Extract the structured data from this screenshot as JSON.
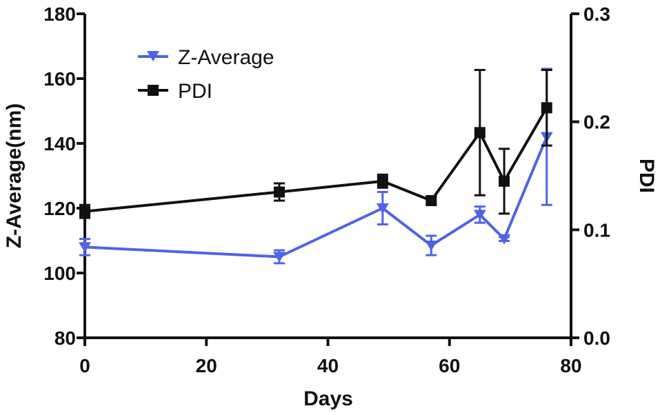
{
  "chart_data": {
    "type": "line",
    "xlabel": "Days",
    "ylabel_left": "Z-Average(nm)",
    "ylabel_right": "PDI",
    "xlim": [
      0,
      80
    ],
    "ylim_left": [
      80,
      180
    ],
    "ylim_right": [
      0.0,
      0.3
    ],
    "x_ticks": [
      "0",
      "20",
      "40",
      "60",
      "80"
    ],
    "y_left_ticks": [
      "80",
      "100",
      "120",
      "140",
      "160",
      "180"
    ],
    "y_right_ticks": [
      "0.0",
      "0.1",
      "0.2",
      "0.3"
    ],
    "legend_position": "top-left",
    "grid": false,
    "series": [
      {
        "name": "Z-Average",
        "color": "#4f63e6",
        "axis": "left",
        "marker": "triangle-down",
        "points": [
          {
            "x": 0,
            "y": 108,
            "err": 2.5
          },
          {
            "x": 32,
            "y": 105,
            "err": 2
          },
          {
            "x": 49,
            "y": 120,
            "err": 5
          },
          {
            "x": 57,
            "y": 108.5,
            "err": 3
          },
          {
            "x": 65,
            "y": 118,
            "err": 2.5
          },
          {
            "x": 69,
            "y": 110.5,
            "err": 0.6
          },
          {
            "x": 76,
            "y": 142,
            "err": 21
          }
        ]
      },
      {
        "name": "PDI",
        "color": "#111111",
        "axis": "right",
        "marker": "square",
        "points": [
          {
            "x": 0,
            "y": 0.117,
            "err": 0.006
          },
          {
            "x": 32,
            "y": 0.135,
            "err": 0.008
          },
          {
            "x": 49,
            "y": 0.145,
            "err": 0.006
          },
          {
            "x": 57,
            "y": 0.127,
            "err": 0.004
          },
          {
            "x": 65,
            "y": 0.19,
            "err": 0.058
          },
          {
            "x": 69,
            "y": 0.145,
            "err": 0.03
          },
          {
            "x": 76,
            "y": 0.213,
            "err": 0.035
          }
        ]
      }
    ]
  }
}
